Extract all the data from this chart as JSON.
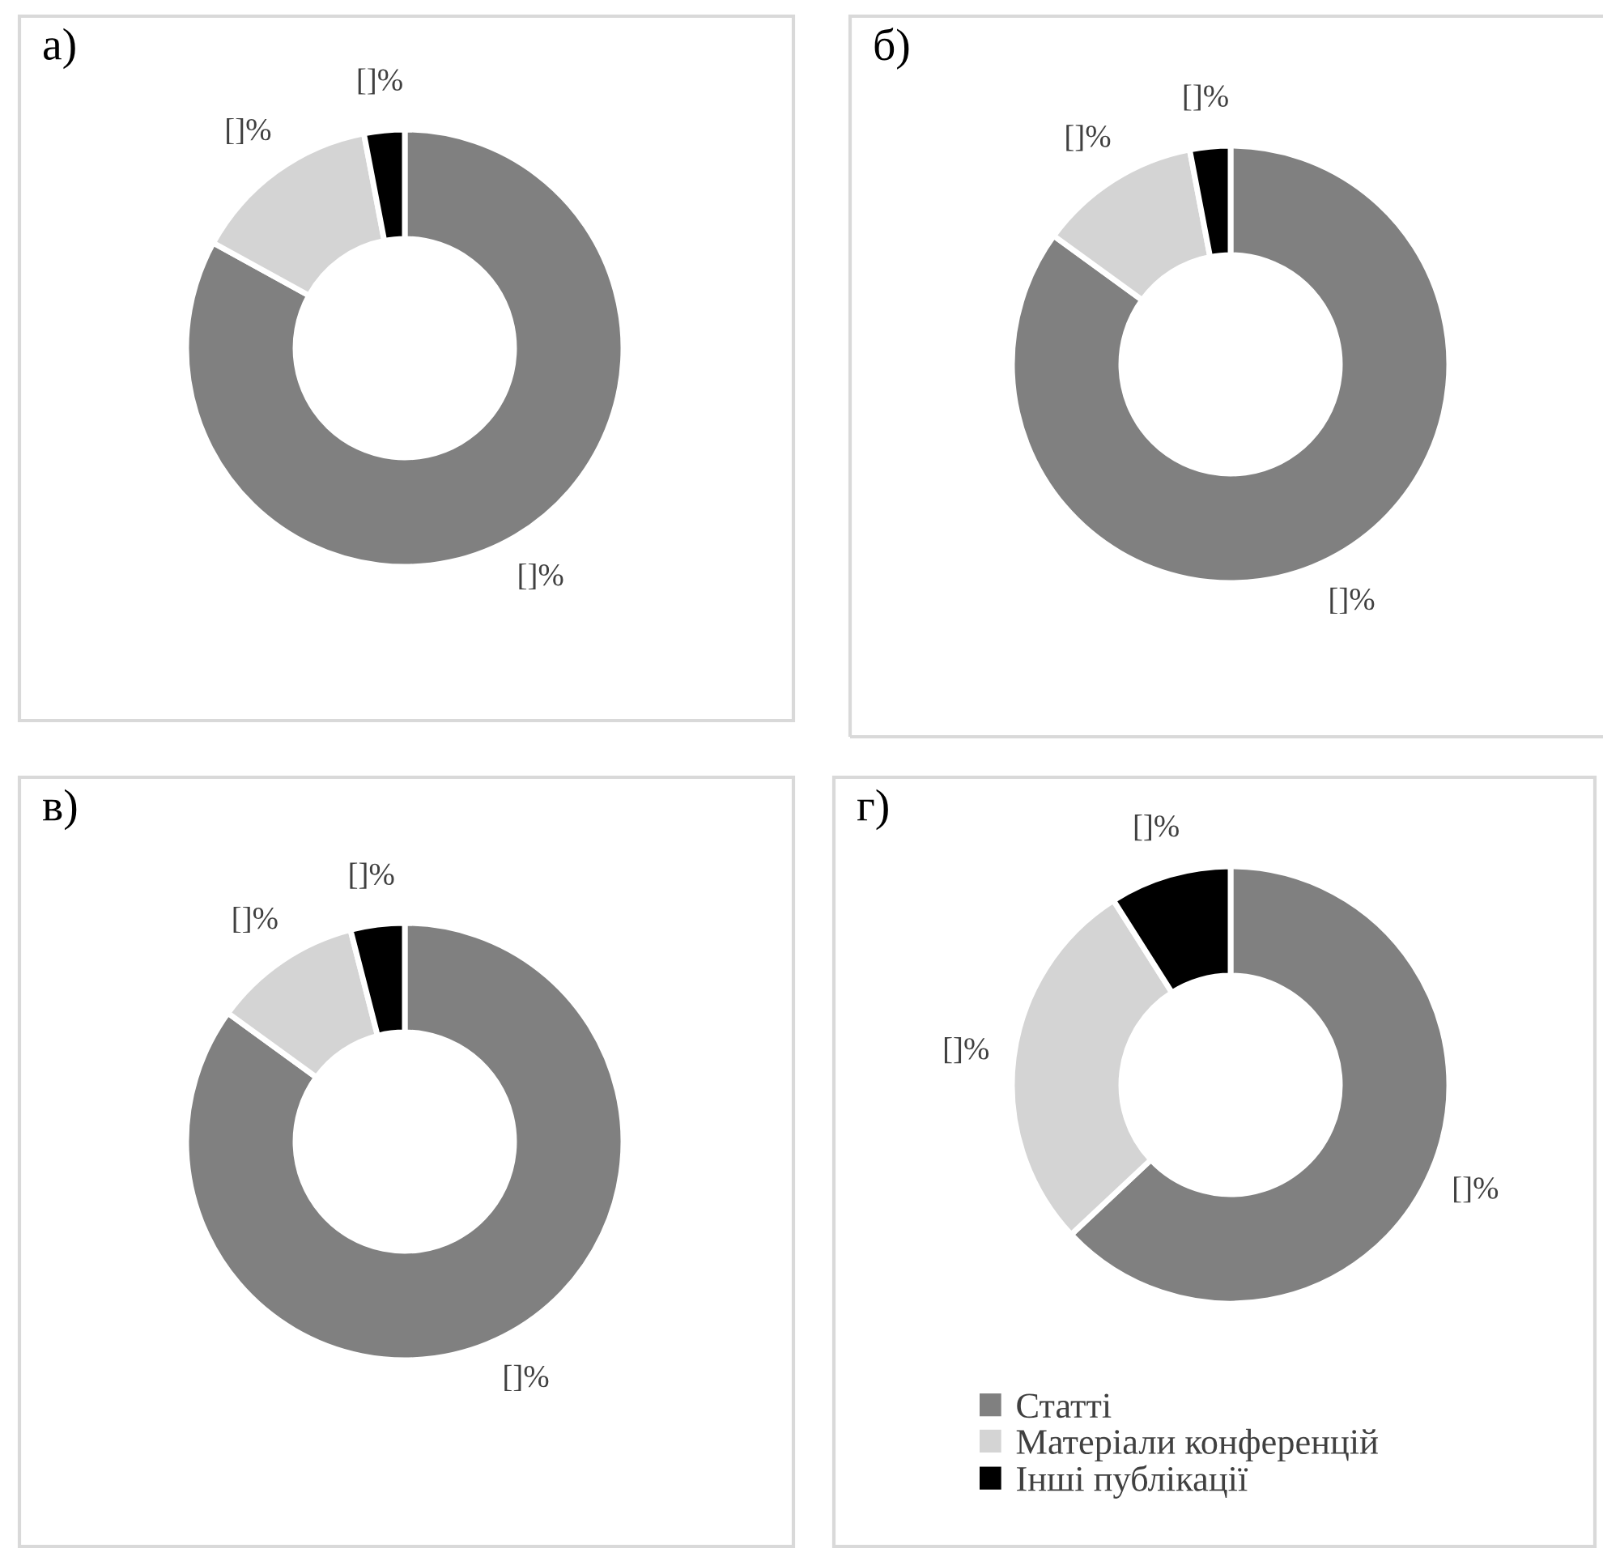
{
  "chart_data": [
    {
      "type": "donut",
      "title": "а)",
      "categories": [
        null,
        null,
        null
      ],
      "values": [
        83,
        14,
        3
      ],
      "colors": [
        "#808080",
        "#d4d4d4",
        "#000000"
      ],
      "value_labels": [
        "[]%",
        "[]%",
        "[]%"
      ]
    },
    {
      "type": "donut",
      "title": "б)",
      "categories": [
        null,
        null,
        null
      ],
      "values": [
        85,
        12,
        3
      ],
      "colors": [
        "#808080",
        "#d4d4d4",
        "#000000"
      ],
      "value_labels": [
        "[]%",
        "[]%",
        "[]%"
      ]
    },
    {
      "type": "donut",
      "title": "в)",
      "categories": [
        null,
        null,
        null
      ],
      "values": [
        85,
        11,
        4
      ],
      "colors": [
        "#808080",
        "#d4d4d4",
        "#000000"
      ],
      "value_labels": [
        "[]%",
        "[]%",
        "[]%"
      ]
    },
    {
      "type": "donut",
      "title": "г)",
      "categories": [
        "Статті",
        "Матеріали конференцій",
        "Інші публікації"
      ],
      "values": [
        63,
        28,
        9
      ],
      "colors": [
        "#808080",
        "#d4d4d4",
        "#000000"
      ],
      "value_labels": [
        "[]%",
        "[]%",
        "[]%"
      ],
      "legend": "bottom"
    }
  ]
}
